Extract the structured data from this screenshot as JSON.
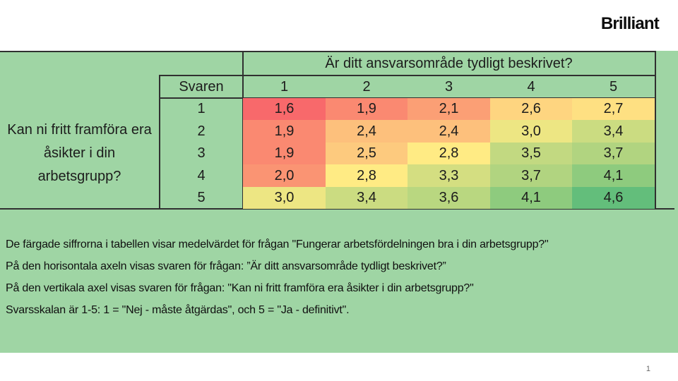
{
  "brand": {
    "logo_text": "Brilliant"
  },
  "page_number": "1",
  "chart_data": {
    "type": "heatmap",
    "title": "Är ditt ansvarsområde tydligt beskrivet?",
    "x_axis_question": "Är ditt ansvarsområde tydligt beskrivet?",
    "y_axis_question": "Kan ni fritt framföra era åsikter i din arbetsgrupp?",
    "value_question": "Fungerar arbetsfördelningen bra i din arbetsgrupp?",
    "corner_label": "Svaren",
    "x_categories": [
      "1",
      "2",
      "3",
      "4",
      "5"
    ],
    "y_categories": [
      "1",
      "2",
      "3",
      "4",
      "5"
    ],
    "values": [
      [
        1.6,
        1.9,
        2.1,
        2.6,
        2.7
      ],
      [
        1.9,
        2.4,
        2.4,
        3.0,
        3.4
      ],
      [
        1.9,
        2.5,
        2.8,
        3.5,
        3.7
      ],
      [
        2.0,
        2.8,
        3.3,
        3.7,
        4.1
      ],
      [
        3.0,
        3.4,
        3.6,
        4.1,
        4.6
      ]
    ],
    "display": [
      [
        "1,6",
        "1,9",
        "2,1",
        "2,6",
        "2,7"
      ],
      [
        "1,9",
        "2,4",
        "2,4",
        "3,0",
        "3,4"
      ],
      [
        "1,9",
        "2,5",
        "2,8",
        "3,5",
        "3,7"
      ],
      [
        "2,0",
        "2,8",
        "3,3",
        "3,7",
        "4,1"
      ],
      [
        "3,0",
        "3,4",
        "3,6",
        "4,1",
        "4,6"
      ]
    ],
    "cell_colors": [
      [
        "#F8696B",
        "#FA8971",
        "#FB9F75",
        "#FED580",
        "#FEE082"
      ],
      [
        "#FA8971",
        "#FDC07C",
        "#FDC07C",
        "#EDE683",
        "#CBDC81"
      ],
      [
        "#FA8971",
        "#FDCA7E",
        "#FFEB84",
        "#C2D981",
        "#B1D480"
      ],
      [
        "#FA9473",
        "#FFEB84",
        "#D4DE81",
        "#B1D480",
        "#8ECB7E"
      ],
      [
        "#EDE683",
        "#CBDC81",
        "#B9D780",
        "#8ECB7E",
        "#63BE7B"
      ]
    ],
    "color_scale": {
      "min_value": 1.6,
      "min_color": "#F8696B",
      "mid_value": 2.8,
      "mid_color": "#FFEB84",
      "max_value": 4.6,
      "max_color": "#63BE7B"
    },
    "scale_note": "Svarsskalan är 1-5: 1 = Nej - måste åtgärdas, 5 = Ja - definitivt"
  },
  "row_axis_label_display": "Kan ni fritt framföra era\nåsikter i din\narbetsgrupp?",
  "notes": [
    "De färgade siffrorna i tabellen visar medelvärdet för frågan \"Fungerar arbetsfördelningen bra i din arbetsgrupp?\"",
    "På den horisontala axeln visas svaren för frågan: ”Är ditt ansvarsområde tydligt beskrivet?”",
    "På den vertikala axel visas svaren för frågan: \"Kan ni fritt framföra era åsikter i din arbetsgrupp?\"",
    "Svarsskalan är 1-5: 1 = \"Nej - måste åtgärdas\", och 5 = \"Ja - definitivt\"."
  ],
  "colors": {
    "panel_bg": "#9FD5A4",
    "border": "#303030",
    "table_text": "#1C1C1C",
    "page_number": "#666666"
  }
}
